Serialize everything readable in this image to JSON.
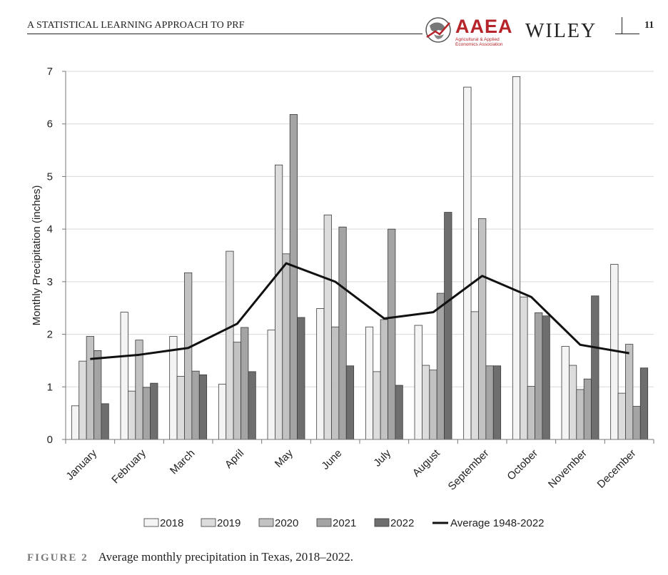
{
  "header": {
    "running_title": "A STATISTICAL LEARNING APPROACH TO PRF",
    "page_number": "11",
    "aaea_logo_text": "AAEA",
    "aaea_subtitle": "Agricultural & Applied Economics Association",
    "wiley_logo_text": "WILEY"
  },
  "caption": {
    "label": "FIGURE 2",
    "text": "Average monthly precipitation in Texas, 2018–2022."
  },
  "colors": {
    "series_2018": "#f4f4f4",
    "series_2019": "#dcdcdc",
    "series_2020": "#c2c2c2",
    "series_2021": "#a4a4a4",
    "series_2022": "#6e6e6e",
    "average_line": "#111111",
    "gridline": "#d9d9d9"
  },
  "chart_data": {
    "type": "bar",
    "title": "",
    "xlabel": "",
    "ylabel": "Monthly Precipitation (inches)",
    "ylim": [
      0,
      7
    ],
    "yticks": [
      "0",
      "1",
      "2",
      "3",
      "4",
      "5",
      "6",
      "7"
    ],
    "grid": true,
    "legend_position": "bottom",
    "categories": [
      "January",
      "February",
      "March",
      "April",
      "May",
      "June",
      "July",
      "August",
      "September",
      "October",
      "November",
      "December"
    ],
    "series": [
      {
        "name": "2018",
        "values": [
          0.64,
          2.42,
          1.96,
          1.05,
          2.08,
          2.49,
          2.14,
          2.17,
          6.7,
          6.9,
          1.77,
          3.33
        ]
      },
      {
        "name": "2019",
        "values": [
          1.49,
          0.92,
          1.2,
          3.58,
          5.22,
          4.27,
          1.29,
          1.41,
          2.43,
          2.71,
          1.41,
          0.88
        ]
      },
      {
        "name": "2020",
        "values": [
          1.96,
          1.89,
          3.17,
          1.85,
          3.53,
          2.14,
          2.28,
          1.32,
          4.2,
          1.01,
          0.95,
          1.81
        ]
      },
      {
        "name": "2021",
        "values": [
          1.69,
          0.99,
          1.3,
          2.13,
          6.18,
          4.04,
          4.0,
          2.78,
          1.4,
          2.41,
          1.15,
          0.63
        ]
      },
      {
        "name": "2022",
        "values": [
          0.68,
          1.07,
          1.23,
          1.29,
          2.32,
          1.4,
          1.03,
          4.32,
          1.4,
          2.35,
          2.73,
          1.36
        ]
      }
    ],
    "line_series": {
      "name": "Average 1948-2022",
      "values": [
        1.53,
        1.61,
        1.74,
        2.2,
        3.35,
        3.0,
        2.3,
        2.42,
        3.11,
        2.71,
        1.8,
        1.64
      ]
    }
  }
}
